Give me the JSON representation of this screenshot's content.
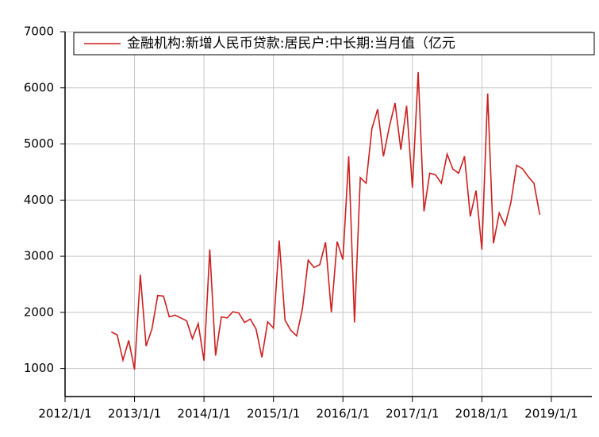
{
  "chart_data": {
    "type": "line",
    "legend": "upper left",
    "grid": true,
    "series": [
      {
        "name": "金融机构:新增人民币贷款:居民户:中长期:当月值（亿元",
        "color": "#cc1f1f",
        "values": [
          1650,
          1600,
          1150,
          1500,
          980,
          2670,
          1400,
          1700,
          2300,
          2290,
          1920,
          1950,
          1900,
          1850,
          1530,
          1800,
          1140,
          3120,
          1230,
          1920,
          1900,
          2010,
          1990,
          1820,
          1880,
          1700,
          1200,
          1830,
          1720,
          3280,
          1860,
          1680,
          1580,
          2060,
          2930,
          2800,
          2850,
          3250,
          2000,
          3260,
          2940,
          4780,
          1820,
          4400,
          4300,
          5270,
          5620,
          4780,
          5300,
          5730,
          4900,
          5680,
          4220,
          6280,
          3800,
          4480,
          4450,
          4300,
          4820,
          4550,
          4480,
          4780,
          3710,
          4170,
          3120,
          5900,
          3230,
          3770,
          3550,
          3950,
          4620,
          4560,
          4420,
          4300,
          3740
        ]
      }
    ],
    "x": [
      "2012/9/1",
      "2012/10/1",
      "2012/11/1",
      "2012/12/1",
      "2013/1/1",
      "2013/2/1",
      "2013/3/1",
      "2013/4/1",
      "2013/5/1",
      "2013/6/1",
      "2013/7/1",
      "2013/8/1",
      "2013/9/1",
      "2013/10/1",
      "2013/11/1",
      "2013/12/1",
      "2014/1/1",
      "2014/2/1",
      "2014/3/1",
      "2014/4/1",
      "2014/5/1",
      "2014/6/1",
      "2014/7/1",
      "2014/8/1",
      "2014/9/1",
      "2014/10/1",
      "2014/11/1",
      "2014/12/1",
      "2015/1/1",
      "2015/2/1",
      "2015/3/1",
      "2015/4/1",
      "2015/5/1",
      "2015/6/1",
      "2015/7/1",
      "2015/8/1",
      "2015/9/1",
      "2015/10/1",
      "2015/11/1",
      "2015/12/1",
      "2016/1/1",
      "2016/2/1",
      "2016/3/1",
      "2016/4/1",
      "2016/5/1",
      "2016/6/1",
      "2016/7/1",
      "2016/8/1",
      "2016/9/1",
      "2016/10/1",
      "2016/11/1",
      "2016/12/1",
      "2017/1/1",
      "2017/2/1",
      "2017/3/1",
      "2017/4/1",
      "2017/5/1",
      "2017/6/1",
      "2017/7/1",
      "2017/8/1",
      "2017/9/1",
      "2017/10/1",
      "2017/11/1",
      "2017/12/1",
      "2018/1/1",
      "2018/2/1",
      "2018/3/1",
      "2018/4/1",
      "2018/5/1",
      "2018/6/1",
      "2018/7/1",
      "2018/8/1",
      "2018/9/1",
      "2018/10/1",
      "2018/11/1"
    ],
    "xlim": [
      "2012/1/1",
      "2019/8/1"
    ],
    "xticks": [
      "2012/1/1",
      "2013/1/1",
      "2014/1/1",
      "2015/1/1",
      "2016/1/1",
      "2017/1/1",
      "2018/1/1",
      "2019/1/1"
    ],
    "ylim": [
      500,
      7000
    ],
    "yticks": [
      1000,
      2000,
      3000,
      4000,
      5000,
      6000,
      7000
    ]
  }
}
